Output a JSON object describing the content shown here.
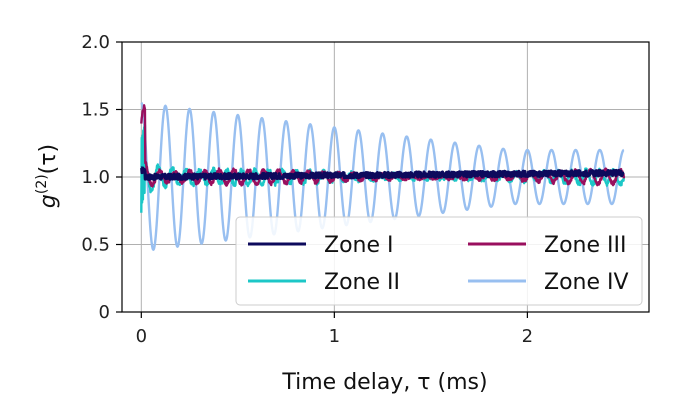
{
  "chart_data": {
    "type": "line",
    "title": "",
    "xlabel": "Time delay, τ (ms)",
    "ylabel": "g(2)(τ)",
    "ylabel_parts": {
      "main": "g",
      "sup": "(2)",
      "arg": "(τ)"
    },
    "xlim": [
      -0.1,
      2.63
    ],
    "ylim": [
      0.0,
      2.0
    ],
    "xticks": [
      0,
      1,
      2
    ],
    "xtick_labels": [
      "0",
      "1",
      "2"
    ],
    "yticks": [
      0.0,
      0.5,
      1.0,
      1.5,
      2.0
    ],
    "ytick_labels": [
      "0",
      "0.5",
      "1.0",
      "1.5",
      "2.0"
    ],
    "grid": true,
    "legend_position": "lower-right",
    "series": [
      {
        "name": "Zone I",
        "color": "#0d0a5c",
        "model": {
          "baseline": 1.0,
          "baseline_slope": 0.012,
          "noise_amp": 0.02,
          "start_spike": 0.05,
          "freq_per_ms": 0,
          "decay_ms": 1.0,
          "osc_amp_start": 0.0,
          "osc_amp_end": 0.0
        },
        "t_range": [
          0.0,
          2.5
        ]
      },
      {
        "name": "Zone II",
        "color": "#1cc7c7",
        "model": {
          "baseline": 1.0,
          "baseline_slope": 0.0,
          "noise_amp": 0.02,
          "start_spike": 0.25,
          "freq_per_ms": 14.0,
          "decay_ms": 0.08,
          "osc_amp_start": 0.25,
          "osc_amp_end": 0.05
        },
        "t_range": [
          0.0,
          2.5
        ]
      },
      {
        "name": "Zone III",
        "color": "#990f5e",
        "model": {
          "baseline": 1.0,
          "baseline_slope": 0.0,
          "noise_amp": 0.015,
          "start_spike": 0.4,
          "freq_per_ms": 13.0,
          "decay_ms": 0.03,
          "osc_amp_start": 0.3,
          "osc_amp_end": 0.05
        },
        "t_range": [
          0.0,
          2.5
        ]
      },
      {
        "name": "Zone IV",
        "color": "#98bff0",
        "model": {
          "baseline": 1.0,
          "baseline_slope": 0.0,
          "noise_amp": 0.0,
          "start_spike": 0.0,
          "freq_per_ms": 8.0,
          "decay_ms": 1.6,
          "osc_amp_start": 0.55,
          "osc_amp_end": 0.2
        },
        "t_range": [
          0.0,
          2.5
        ]
      }
    ],
    "legend_order": [
      "Zone I",
      "Zone III",
      "Zone II",
      "Zone IV"
    ]
  }
}
